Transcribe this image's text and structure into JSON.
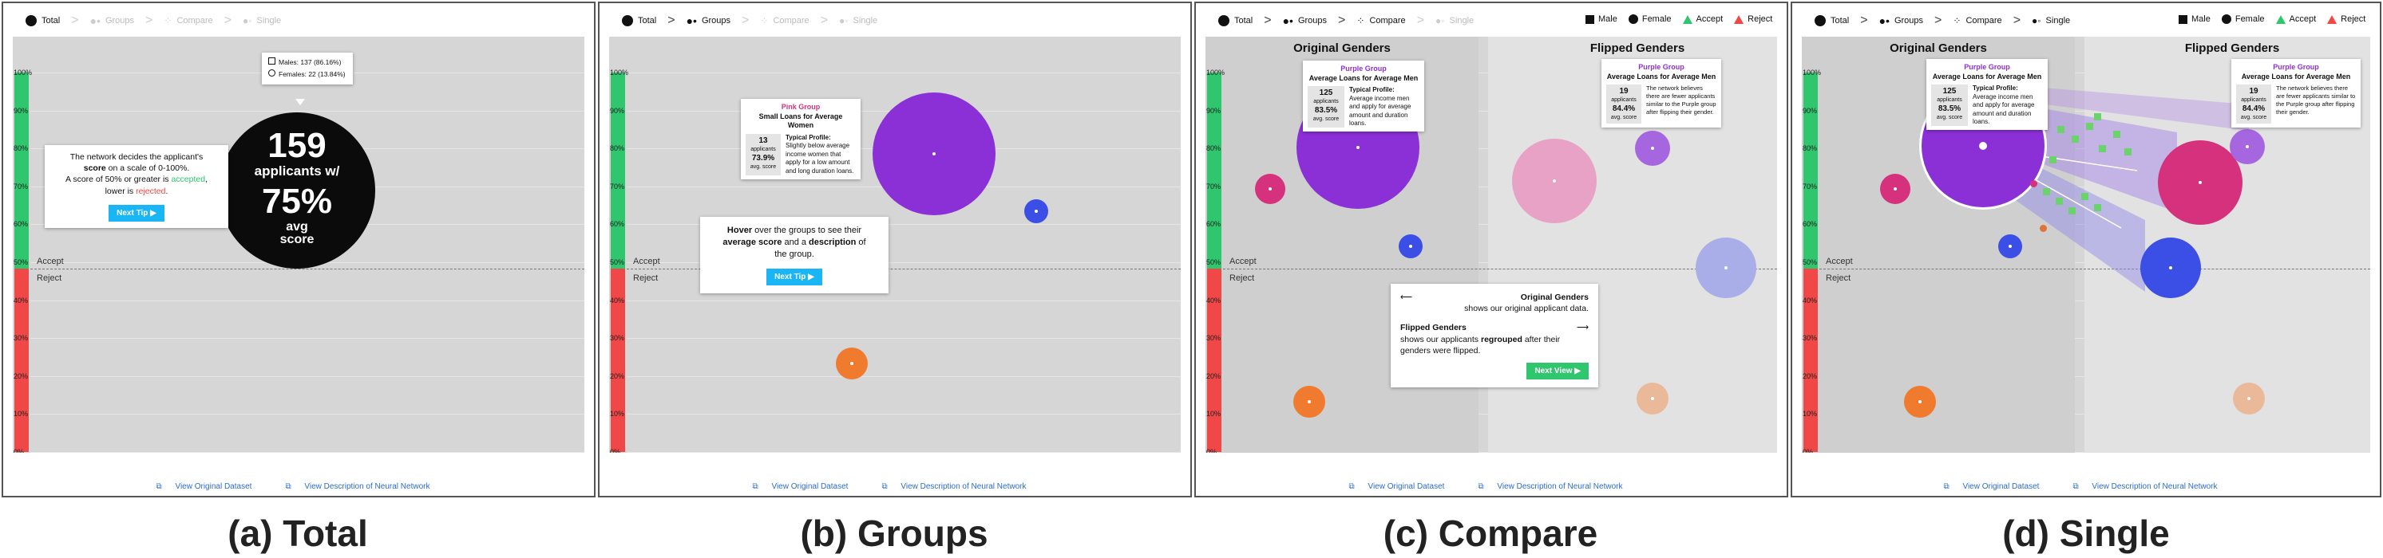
{
  "nav": {
    "total": "Total",
    "groups": "Groups",
    "compare": "Compare",
    "single": "Single"
  },
  "ticks": [
    "100%",
    "90%",
    "80%",
    "70%",
    "60%",
    "50%",
    "40%",
    "30%",
    "20%",
    "10%",
    "0%"
  ],
  "accept_label": "Accept",
  "reject_label": "Reject",
  "footer": {
    "dataset": "View Original Dataset",
    "network": "View Description of Neural Network"
  },
  "captions": [
    "(a) Total",
    "(b) Groups",
    "(c) Compare",
    "(d) Single"
  ],
  "legend": {
    "male": "Male",
    "female": "Female",
    "accept": "Accept",
    "reject": "Reject"
  },
  "colors": {
    "accept": "#2fc66d",
    "reject": "#f04747",
    "purple": "#8b2fd6",
    "pink": "#d6317c",
    "blue": "#3b4ee6",
    "orange": "#f07b2e",
    "button": "#19b5f5"
  },
  "panel_a": {
    "legend_males": "Males: 137 (86.16%)",
    "legend_females": "Females: 22 (13.84%)",
    "count": "159",
    "count_sub": "applicants w/",
    "pct": "75%",
    "pct_sub1": "avg",
    "pct_sub2": "score",
    "tip_line1": "The network decides the applicant's",
    "tip_line2a": "score",
    "tip_line2b": " on a scale of 0-100%.",
    "tip_line3a": "A score of 50% or greater is ",
    "tip_line3b": "accepted",
    "tip_line4a": "lower is ",
    "tip_line4b": "rejected",
    "button": "Next Tip"
  },
  "panel_b": {
    "tip_group": "Pink Group",
    "tip_title": "Small Loans for Average Women",
    "tip_count": "13",
    "tip_count_sub": "applicants",
    "tip_pct": "73.9%",
    "tip_pct_sub": "avg. score",
    "tip_profile": "Typical Profile:",
    "tip_desc": "Slightly below average income women that apply for a low amount and long duration loans.",
    "hover_a": "Hover",
    "hover_b": " over the groups to see their",
    "hover_c": "average score",
    "hover_d": " and a ",
    "hover_e": "description",
    "hover_f": " of",
    "hover_g": "the group.",
    "button": "Next Tip"
  },
  "panel_c": {
    "left_title": "Original Genders",
    "right_title": "Flipped Genders",
    "tip_group": "Purple Group",
    "tip_title": "Average Loans for Average Men",
    "tip_count": "125",
    "tip_count_sub": "applicants",
    "tip_pct": "83.5%",
    "tip_pct_sub": "avg. score",
    "tip_profile": "Typical Profile:",
    "tip_desc": "Average income men and apply for average amount and duration loans.",
    "rtip_group": "Purple Group",
    "rtip_title": "Average Loans for Average Men",
    "rtip_count": "19",
    "rtip_count_sub": "applicants",
    "rtip_pct": "84.4%",
    "rtip_pct_sub": "avg. score",
    "rtip_desc": "The network believes there are fewer applicants similar to the Purple group after flipping their gender.",
    "info_orig_title": "Original Genders",
    "info_orig_desc": "shows our original applicant data.",
    "info_flip_title": "Flipped Genders",
    "info_flip_desc_a": "shows our applicants ",
    "info_flip_desc_b": "regrouped",
    "info_flip_desc_c": " after their",
    "info_flip_desc_d": "genders were flipped.",
    "button": "Next View"
  },
  "panel_d": {
    "left_title": "Original Genders",
    "right_title": "Flipped Genders",
    "tip_group": "Purple Group",
    "tip_title": "Average Loans for Average Men",
    "tip_count": "125",
    "tip_count_sub": "applicants",
    "tip_pct": "83.5%",
    "tip_pct_sub": "avg. score",
    "tip_profile": "Typical Profile:",
    "tip_desc": "Average income men and apply for average amount and duration loans.",
    "rtip_group": "Purple Group",
    "rtip_title": "Average Loans for Average Men",
    "rtip_count": "19",
    "rtip_count_sub": "applicants",
    "rtip_pct": "84.4%",
    "rtip_pct_sub": "avg. score",
    "rtip_desc": "The network believes there are fewer applicants similar to the Purple group after flipping their gender."
  }
}
